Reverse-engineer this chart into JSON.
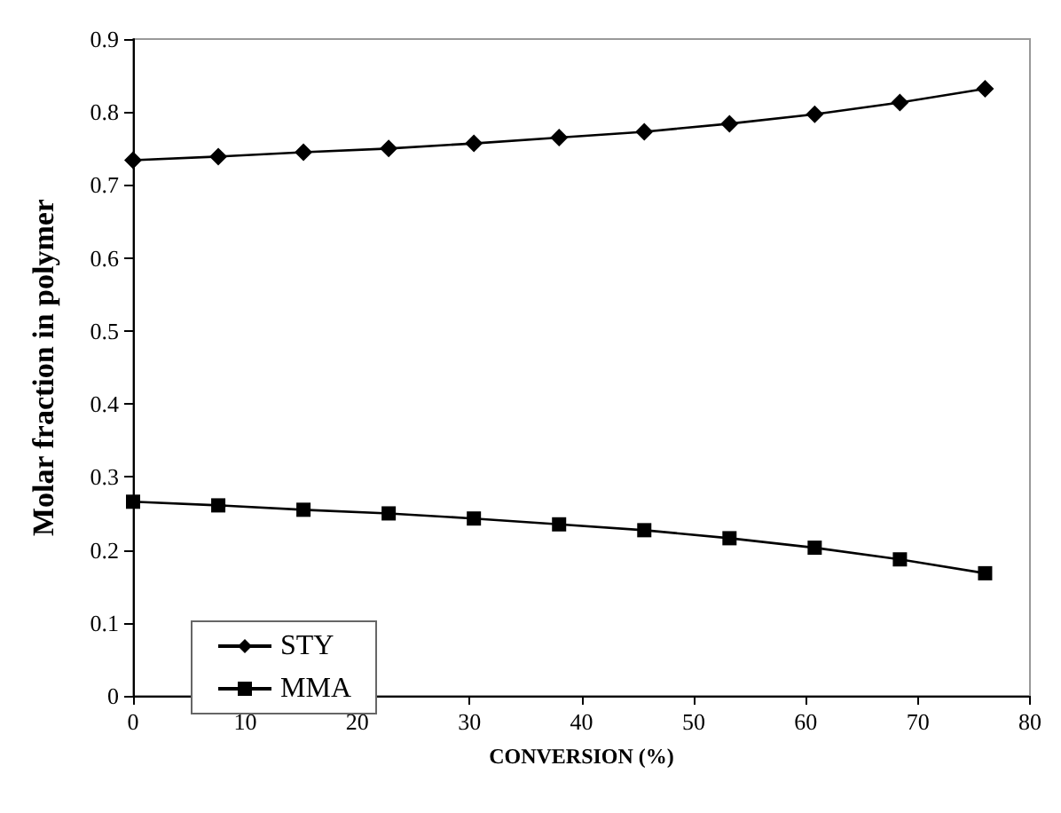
{
  "chart_data": {
    "type": "line",
    "xlabel": "CONVERSION (%)",
    "ylabel": "Molar fraction in polymer",
    "x": [
      0,
      7.6,
      15.2,
      22.8,
      30.4,
      38,
      45.6,
      53.2,
      60.8,
      68.4,
      76
    ],
    "series": [
      {
        "name": "STY",
        "color": "#000000",
        "marker": "diamond",
        "values": [
          0.734,
          0.739,
          0.745,
          0.75,
          0.757,
          0.765,
          0.773,
          0.784,
          0.797,
          0.813,
          0.832
        ]
      },
      {
        "name": "MMA",
        "color": "#000000",
        "marker": "square",
        "values": [
          0.266,
          0.261,
          0.255,
          0.25,
          0.243,
          0.235,
          0.227,
          0.216,
          0.203,
          0.187,
          0.168
        ]
      }
    ],
    "xlim": [
      0,
      80
    ],
    "xticks": [
      0,
      10,
      20,
      30,
      40,
      50,
      60,
      70,
      80
    ],
    "ylim": [
      0,
      0.9
    ],
    "yticks": [
      0,
      0.1,
      0.2,
      0.3,
      0.4,
      0.5,
      0.6,
      0.7,
      0.8,
      0.9
    ],
    "grid": false,
    "legend": "bottom left",
    "line_style": "solid"
  }
}
